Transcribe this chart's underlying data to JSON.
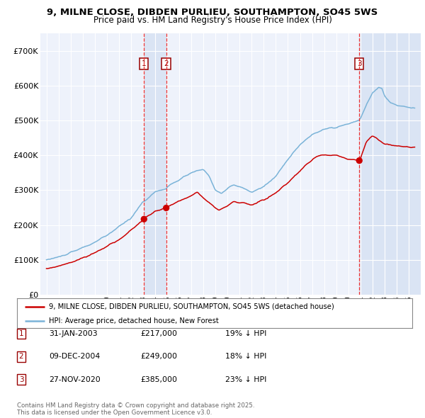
{
  "title_line1": "9, MILNE CLOSE, DIBDEN PURLIEU, SOUTHAMPTON, SO45 5WS",
  "title_line2": "Price paid vs. HM Land Registry's House Price Index (HPI)",
  "background_color": "#ffffff",
  "plot_bg_color": "#eef2fb",
  "grid_color": "#ffffff",
  "hpi_color": "#7ab3d8",
  "price_color": "#cc0000",
  "sale_dates": [
    2003.08,
    2004.92,
    2020.91
  ],
  "sale_prices": [
    217000,
    249000,
    385000
  ],
  "sale_labels": [
    "1",
    "2",
    "3"
  ],
  "vline_color": "#ee3333",
  "legend_entries": [
    "9, MILNE CLOSE, DIBDEN PURLIEU, SOUTHAMPTON, SO45 5WS (detached house)",
    "HPI: Average price, detached house, New Forest"
  ],
  "table_rows": [
    [
      "1",
      "31-JAN-2003",
      "£217,000",
      "19% ↓ HPI"
    ],
    [
      "2",
      "09-DEC-2004",
      "£249,000",
      "18% ↓ HPI"
    ],
    [
      "3",
      "27-NOV-2020",
      "£385,000",
      "23% ↓ HPI"
    ]
  ],
  "footnote": "Contains HM Land Registry data © Crown copyright and database right 2025.\nThis data is licensed under the Open Government Licence v3.0.",
  "ylim": [
    0,
    750000
  ],
  "yticks": [
    0,
    100000,
    200000,
    300000,
    400000,
    500000,
    600000,
    700000
  ],
  "ytick_labels": [
    "£0",
    "£100K",
    "£200K",
    "£300K",
    "£400K",
    "£500K",
    "£600K",
    "£700K"
  ],
  "xlim_start": 1994.5,
  "xlim_end": 2026.0,
  "shade_color": "#c8d8ee",
  "shade_alpha": 0.5
}
